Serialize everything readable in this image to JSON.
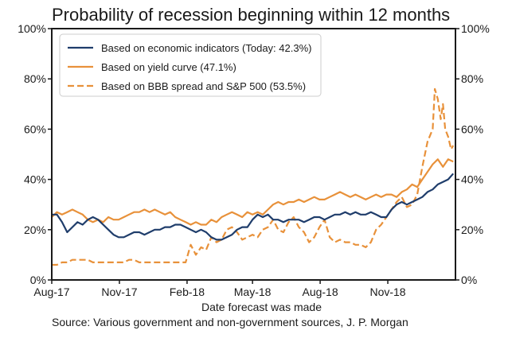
{
  "chart_data": {
    "type": "line",
    "title": "Probability of recession beginning within 12 months",
    "xlabel": "Date forecast was made",
    "source": "Source: Various government and non-government sources, J. P. Morgan",
    "x_ticks": [
      "Aug-17",
      "Nov-17",
      "Feb-18",
      "May-18",
      "Aug-18",
      "Nov-18"
    ],
    "x_range": [
      "2017-08-01",
      "2019-02-01"
    ],
    "y_ticks": [
      "0%",
      "20%",
      "40%",
      "60%",
      "80%",
      "100%"
    ],
    "ylim": [
      0,
      100
    ],
    "y_unit": "%",
    "grid": false,
    "legend_position": "top-left",
    "series": [
      {
        "name": "Based on economic indicators (Today: 42.3%)",
        "color": "#1f3d6b",
        "style": "solid",
        "points": [
          [
            "2017-08-01",
            26
          ],
          [
            "2017-08-08",
            26
          ],
          [
            "2017-08-15",
            23
          ],
          [
            "2017-08-22",
            19
          ],
          [
            "2017-08-29",
            21
          ],
          [
            "2017-09-05",
            23
          ],
          [
            "2017-09-12",
            22
          ],
          [
            "2017-09-19",
            24
          ],
          [
            "2017-09-26",
            25
          ],
          [
            "2017-10-03",
            24
          ],
          [
            "2017-10-10",
            22
          ],
          [
            "2017-10-17",
            20
          ],
          [
            "2017-10-24",
            18
          ],
          [
            "2017-10-31",
            17
          ],
          [
            "2017-11-07",
            17
          ],
          [
            "2017-11-14",
            18
          ],
          [
            "2017-11-21",
            19
          ],
          [
            "2017-11-28",
            19
          ],
          [
            "2017-12-05",
            18
          ],
          [
            "2017-12-12",
            19
          ],
          [
            "2017-12-19",
            20
          ],
          [
            "2017-12-26",
            20
          ],
          [
            "2018-01-02",
            21
          ],
          [
            "2018-01-09",
            21
          ],
          [
            "2018-01-16",
            22
          ],
          [
            "2018-01-23",
            22
          ],
          [
            "2018-01-30",
            21
          ],
          [
            "2018-02-06",
            20
          ],
          [
            "2018-02-13",
            19
          ],
          [
            "2018-02-20",
            20
          ],
          [
            "2018-02-27",
            19
          ],
          [
            "2018-03-06",
            17
          ],
          [
            "2018-03-13",
            16
          ],
          [
            "2018-03-20",
            16
          ],
          [
            "2018-03-27",
            17
          ],
          [
            "2018-04-03",
            18
          ],
          [
            "2018-04-10",
            20
          ],
          [
            "2018-04-17",
            21
          ],
          [
            "2018-04-24",
            21
          ],
          [
            "2018-05-01",
            24
          ],
          [
            "2018-05-08",
            26
          ],
          [
            "2018-05-15",
            25
          ],
          [
            "2018-05-22",
            26
          ],
          [
            "2018-05-29",
            24
          ],
          [
            "2018-06-05",
            24
          ],
          [
            "2018-06-12",
            23
          ],
          [
            "2018-06-19",
            24
          ],
          [
            "2018-06-26",
            24
          ],
          [
            "2018-07-03",
            24
          ],
          [
            "2018-07-10",
            23
          ],
          [
            "2018-07-17",
            24
          ],
          [
            "2018-07-24",
            25
          ],
          [
            "2018-07-31",
            25
          ],
          [
            "2018-08-07",
            24
          ],
          [
            "2018-08-14",
            25
          ],
          [
            "2018-08-21",
            26
          ],
          [
            "2018-08-28",
            26
          ],
          [
            "2018-09-04",
            27
          ],
          [
            "2018-09-11",
            26
          ],
          [
            "2018-09-18",
            27
          ],
          [
            "2018-09-25",
            26
          ],
          [
            "2018-10-02",
            26
          ],
          [
            "2018-10-09",
            27
          ],
          [
            "2018-10-16",
            26
          ],
          [
            "2018-10-23",
            25
          ],
          [
            "2018-10-30",
            25
          ],
          [
            "2018-11-06",
            28
          ],
          [
            "2018-11-13",
            30
          ],
          [
            "2018-11-20",
            31
          ],
          [
            "2018-11-27",
            30
          ],
          [
            "2018-12-04",
            31
          ],
          [
            "2018-12-11",
            32
          ],
          [
            "2018-12-18",
            33
          ],
          [
            "2018-12-25",
            35
          ],
          [
            "2019-01-01",
            36
          ],
          [
            "2019-01-08",
            38
          ],
          [
            "2019-01-15",
            39
          ],
          [
            "2019-01-22",
            40
          ],
          [
            "2019-01-29",
            42.3
          ]
        ]
      },
      {
        "name": "Based on yield curve (47.1%)",
        "color": "#e8913a",
        "style": "solid",
        "points": [
          [
            "2017-08-01",
            25
          ],
          [
            "2017-08-08",
            27
          ],
          [
            "2017-08-15",
            26
          ],
          [
            "2017-08-22",
            27
          ],
          [
            "2017-08-29",
            28
          ],
          [
            "2017-09-05",
            27
          ],
          [
            "2017-09-12",
            26
          ],
          [
            "2017-09-19",
            24
          ],
          [
            "2017-09-26",
            23
          ],
          [
            "2017-10-03",
            24
          ],
          [
            "2017-10-10",
            23
          ],
          [
            "2017-10-17",
            25
          ],
          [
            "2017-10-24",
            24
          ],
          [
            "2017-10-31",
            24
          ],
          [
            "2017-11-07",
            25
          ],
          [
            "2017-11-14",
            26
          ],
          [
            "2017-11-21",
            27
          ],
          [
            "2017-11-28",
            27
          ],
          [
            "2017-12-05",
            28
          ],
          [
            "2017-12-12",
            27
          ],
          [
            "2017-12-19",
            28
          ],
          [
            "2017-12-26",
            27
          ],
          [
            "2018-01-02",
            26
          ],
          [
            "2018-01-09",
            27
          ],
          [
            "2018-01-16",
            25
          ],
          [
            "2018-01-23",
            24
          ],
          [
            "2018-01-30",
            23
          ],
          [
            "2018-02-06",
            22
          ],
          [
            "2018-02-13",
            23
          ],
          [
            "2018-02-20",
            22
          ],
          [
            "2018-02-27",
            22
          ],
          [
            "2018-03-06",
            24
          ],
          [
            "2018-03-13",
            23
          ],
          [
            "2018-03-20",
            25
          ],
          [
            "2018-03-27",
            26
          ],
          [
            "2018-04-03",
            27
          ],
          [
            "2018-04-10",
            26
          ],
          [
            "2018-04-17",
            25
          ],
          [
            "2018-04-24",
            27
          ],
          [
            "2018-05-01",
            26
          ],
          [
            "2018-05-08",
            27
          ],
          [
            "2018-05-15",
            26
          ],
          [
            "2018-05-22",
            28
          ],
          [
            "2018-05-29",
            30
          ],
          [
            "2018-06-05",
            31
          ],
          [
            "2018-06-12",
            30
          ],
          [
            "2018-06-19",
            31
          ],
          [
            "2018-06-26",
            31
          ],
          [
            "2018-07-03",
            32
          ],
          [
            "2018-07-10",
            31
          ],
          [
            "2018-07-17",
            32
          ],
          [
            "2018-07-24",
            33
          ],
          [
            "2018-07-31",
            32
          ],
          [
            "2018-08-07",
            32
          ],
          [
            "2018-08-14",
            33
          ],
          [
            "2018-08-21",
            34
          ],
          [
            "2018-08-28",
            35
          ],
          [
            "2018-09-04",
            34
          ],
          [
            "2018-09-11",
            33
          ],
          [
            "2018-09-18",
            34
          ],
          [
            "2018-09-25",
            33
          ],
          [
            "2018-10-02",
            32
          ],
          [
            "2018-10-09",
            33
          ],
          [
            "2018-10-16",
            34
          ],
          [
            "2018-10-23",
            33
          ],
          [
            "2018-10-30",
            34
          ],
          [
            "2018-11-06",
            34
          ],
          [
            "2018-11-13",
            33
          ],
          [
            "2018-11-20",
            35
          ],
          [
            "2018-11-27",
            36
          ],
          [
            "2018-12-04",
            38
          ],
          [
            "2018-12-11",
            37
          ],
          [
            "2018-12-18",
            40
          ],
          [
            "2018-12-25",
            43
          ],
          [
            "2019-01-01",
            46
          ],
          [
            "2019-01-08",
            48
          ],
          [
            "2019-01-15",
            45
          ],
          [
            "2019-01-22",
            48
          ],
          [
            "2019-01-29",
            47.1
          ]
        ]
      },
      {
        "name": "Based on BBB spread and S&P 500 (53.5%)",
        "color": "#e8913a",
        "style": "dashed",
        "points": [
          [
            "2017-08-01",
            6
          ],
          [
            "2017-08-08",
            6
          ],
          [
            "2017-08-15",
            7
          ],
          [
            "2017-08-22",
            7
          ],
          [
            "2017-08-29",
            8
          ],
          [
            "2017-09-05",
            8
          ],
          [
            "2017-09-12",
            8
          ],
          [
            "2017-09-19",
            8
          ],
          [
            "2017-09-26",
            7
          ],
          [
            "2017-10-03",
            7
          ],
          [
            "2017-10-10",
            7
          ],
          [
            "2017-10-17",
            7
          ],
          [
            "2017-10-24",
            7
          ],
          [
            "2017-10-31",
            7
          ],
          [
            "2017-11-07",
            7
          ],
          [
            "2017-11-14",
            8
          ],
          [
            "2017-11-21",
            8
          ],
          [
            "2017-11-28",
            7
          ],
          [
            "2017-12-05",
            7
          ],
          [
            "2017-12-12",
            7
          ],
          [
            "2017-12-19",
            7
          ],
          [
            "2017-12-26",
            7
          ],
          [
            "2018-01-02",
            7
          ],
          [
            "2018-01-09",
            7
          ],
          [
            "2018-01-16",
            7
          ],
          [
            "2018-01-23",
            7
          ],
          [
            "2018-01-30",
            7
          ],
          [
            "2018-02-06",
            14
          ],
          [
            "2018-02-13",
            10
          ],
          [
            "2018-02-20",
            13
          ],
          [
            "2018-02-27",
            12
          ],
          [
            "2018-03-06",
            17
          ],
          [
            "2018-03-13",
            15
          ],
          [
            "2018-03-20",
            16
          ],
          [
            "2018-03-27",
            20
          ],
          [
            "2018-04-03",
            21
          ],
          [
            "2018-04-10",
            19
          ],
          [
            "2018-04-17",
            16
          ],
          [
            "2018-04-24",
            17
          ],
          [
            "2018-05-01",
            18
          ],
          [
            "2018-05-08",
            17
          ],
          [
            "2018-05-15",
            20
          ],
          [
            "2018-05-22",
            21
          ],
          [
            "2018-05-29",
            24
          ],
          [
            "2018-06-05",
            20
          ],
          [
            "2018-06-12",
            19
          ],
          [
            "2018-06-19",
            23
          ],
          [
            "2018-06-26",
            25
          ],
          [
            "2018-07-03",
            21
          ],
          [
            "2018-07-10",
            19
          ],
          [
            "2018-07-17",
            15
          ],
          [
            "2018-07-24",
            17
          ],
          [
            "2018-07-31",
            21
          ],
          [
            "2018-08-07",
            24
          ],
          [
            "2018-08-14",
            17
          ],
          [
            "2018-08-21",
            15
          ],
          [
            "2018-08-28",
            16
          ],
          [
            "2018-09-04",
            15
          ],
          [
            "2018-09-11",
            15
          ],
          [
            "2018-09-18",
            14
          ],
          [
            "2018-09-25",
            14
          ],
          [
            "2018-10-02",
            13
          ],
          [
            "2018-10-09",
            15
          ],
          [
            "2018-10-16",
            20
          ],
          [
            "2018-10-23",
            22
          ],
          [
            "2018-10-30",
            25
          ],
          [
            "2018-11-06",
            28
          ],
          [
            "2018-11-13",
            31
          ],
          [
            "2018-11-20",
            33
          ],
          [
            "2018-11-27",
            29
          ],
          [
            "2018-12-04",
            30
          ],
          [
            "2018-12-11",
            34
          ],
          [
            "2018-12-18",
            45
          ],
          [
            "2018-12-25",
            55
          ],
          [
            "2019-01-01",
            60
          ],
          [
            "2019-01-04",
            76
          ],
          [
            "2019-01-08",
            72
          ],
          [
            "2019-01-12",
            64
          ],
          [
            "2019-01-15",
            70
          ],
          [
            "2019-01-18",
            60
          ],
          [
            "2019-01-22",
            57
          ],
          [
            "2019-01-26",
            52
          ],
          [
            "2019-01-29",
            53.5
          ]
        ]
      }
    ]
  }
}
